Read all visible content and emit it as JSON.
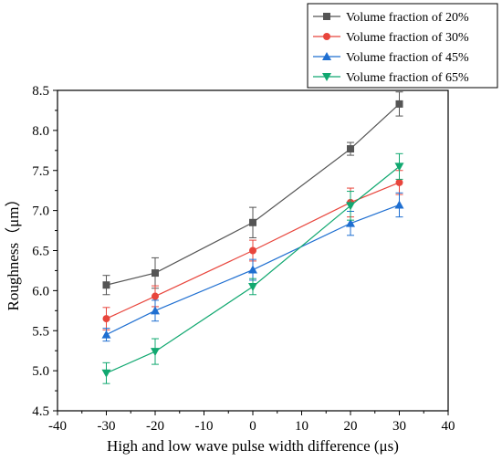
{
  "chart_data": {
    "type": "line",
    "title": "",
    "xlabel": "High and low wave pulse width difference (μs)",
    "ylabel": "Roughness（μm）",
    "xlim": [
      -40,
      40
    ],
    "ylim": [
      4.5,
      8.5
    ],
    "xticks": [
      -40,
      -30,
      -20,
      -10,
      0,
      10,
      20,
      30,
      40
    ],
    "yticks": [
      4.5,
      5.0,
      5.5,
      6.0,
      6.5,
      7.0,
      7.5,
      8.0,
      8.5
    ],
    "xtick_labels": [
      "-40",
      "-30",
      "-20",
      "-10",
      "0",
      "10",
      "20",
      "30",
      "40"
    ],
    "ytick_labels": [
      "4.5",
      "5.0",
      "5.5",
      "6.0",
      "6.5",
      "7.0",
      "7.5",
      "8.0",
      "8.5"
    ],
    "grid": false,
    "legend_position": "top-right",
    "x": [
      -30,
      -20,
      0,
      20,
      30
    ],
    "series": [
      {
        "name": "Volume fraction of 20%",
        "color": "#555555",
        "marker": "square",
        "values": [
          6.07,
          6.22,
          6.85,
          7.77,
          8.33
        ],
        "errors": [
          0.12,
          0.19,
          0.19,
          0.08,
          0.15
        ]
      },
      {
        "name": "Volume fraction of 30%",
        "color": "#e8453c",
        "marker": "circle",
        "values": [
          5.65,
          5.93,
          6.5,
          7.1,
          7.35
        ],
        "errors": [
          0.14,
          0.13,
          0.13,
          0.18,
          0.15
        ]
      },
      {
        "name": "Volume fraction of 45%",
        "color": "#1f6fd1",
        "marker": "triangle-up",
        "values": [
          5.45,
          5.75,
          6.26,
          6.84,
          7.07
        ],
        "errors": [
          0.08,
          0.13,
          0.13,
          0.15,
          0.15
        ]
      },
      {
        "name": "Volume fraction of 65%",
        "color": "#11a870",
        "marker": "triangle-down",
        "values": [
          4.97,
          5.24,
          6.05,
          7.06,
          7.55
        ],
        "errors": [
          0.13,
          0.16,
          0.1,
          0.18,
          0.16
        ]
      }
    ]
  }
}
